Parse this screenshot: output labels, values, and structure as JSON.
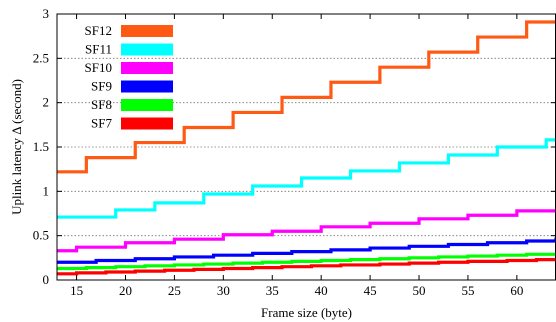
{
  "chart_data": {
    "type": "line",
    "xlabel": "Frame size (byte)",
    "ylabel": "Uplink latency Δ (second)",
    "xlim": [
      13,
      64
    ],
    "ylim": [
      0,
      3
    ],
    "xticks": [
      15,
      20,
      25,
      30,
      35,
      40,
      45,
      50,
      55,
      60
    ],
    "yticks": [
      0,
      0.5,
      1,
      1.5,
      2,
      2.5,
      3
    ],
    "ytick_labels": [
      "0",
      "0.5",
      "1",
      "1.5",
      "2",
      "2.5",
      "3"
    ],
    "grid": "horizontal-dotted",
    "legend_position": "top-left",
    "series": [
      {
        "name": "SF12",
        "color": "#ff5a14",
        "x": [
          13,
          14,
          15,
          16,
          17,
          18,
          19,
          20,
          21,
          22,
          23,
          24,
          25,
          26,
          27,
          28,
          29,
          30,
          31,
          32,
          33,
          34,
          35,
          36,
          37,
          38,
          39,
          40,
          41,
          42,
          43,
          44,
          45,
          46,
          47,
          48,
          49,
          50,
          51,
          52,
          53,
          54,
          55,
          56,
          57,
          58,
          59,
          60,
          61,
          62,
          63,
          64
        ],
        "values": [
          1.22,
          1.22,
          1.22,
          1.38,
          1.38,
          1.38,
          1.38,
          1.38,
          1.55,
          1.55,
          1.55,
          1.55,
          1.55,
          1.72,
          1.72,
          1.72,
          1.72,
          1.72,
          1.89,
          1.89,
          1.89,
          1.89,
          1.89,
          2.06,
          2.06,
          2.06,
          2.06,
          2.06,
          2.23,
          2.23,
          2.23,
          2.23,
          2.23,
          2.4,
          2.4,
          2.4,
          2.4,
          2.4,
          2.57,
          2.57,
          2.57,
          2.57,
          2.57,
          2.74,
          2.74,
          2.74,
          2.74,
          2.74,
          2.91,
          2.91,
          2.91,
          2.91
        ]
      },
      {
        "name": "SF11",
        "color": "#00ffff",
        "x": [
          13,
          14,
          15,
          16,
          17,
          18,
          19,
          20,
          21,
          22,
          23,
          24,
          25,
          26,
          27,
          28,
          29,
          30,
          31,
          32,
          33,
          34,
          35,
          36,
          37,
          38,
          39,
          40,
          41,
          42,
          43,
          44,
          45,
          46,
          47,
          48,
          49,
          50,
          51,
          52,
          53,
          54,
          55,
          56,
          57,
          58,
          59,
          60,
          61,
          62,
          63,
          64
        ],
        "values": [
          0.71,
          0.71,
          0.71,
          0.71,
          0.71,
          0.71,
          0.79,
          0.79,
          0.79,
          0.79,
          0.87,
          0.87,
          0.87,
          0.87,
          0.87,
          0.97,
          0.97,
          0.97,
          0.97,
          0.97,
          1.06,
          1.06,
          1.06,
          1.06,
          1.06,
          1.15,
          1.15,
          1.15,
          1.15,
          1.15,
          1.23,
          1.23,
          1.23,
          1.23,
          1.23,
          1.32,
          1.32,
          1.32,
          1.32,
          1.32,
          1.41,
          1.41,
          1.41,
          1.41,
          1.41,
          1.5,
          1.5,
          1.5,
          1.5,
          1.5,
          1.58,
          1.58
        ]
      },
      {
        "name": "SF10",
        "color": "#ff00ff",
        "x": [
          13,
          14,
          15,
          16,
          17,
          18,
          19,
          20,
          21,
          22,
          23,
          24,
          25,
          26,
          27,
          28,
          29,
          30,
          31,
          32,
          33,
          34,
          35,
          36,
          37,
          38,
          39,
          40,
          41,
          42,
          43,
          44,
          45,
          46,
          47,
          48,
          49,
          50,
          51,
          52,
          53,
          54,
          55,
          56,
          57,
          58,
          59,
          60,
          61,
          62,
          63,
          64
        ],
        "values": [
          0.33,
          0.33,
          0.37,
          0.37,
          0.37,
          0.37,
          0.37,
          0.42,
          0.42,
          0.42,
          0.42,
          0.42,
          0.46,
          0.46,
          0.46,
          0.46,
          0.46,
          0.51,
          0.51,
          0.51,
          0.51,
          0.51,
          0.55,
          0.55,
          0.55,
          0.55,
          0.55,
          0.6,
          0.6,
          0.6,
          0.6,
          0.6,
          0.64,
          0.64,
          0.64,
          0.64,
          0.64,
          0.69,
          0.69,
          0.69,
          0.69,
          0.69,
          0.73,
          0.73,
          0.73,
          0.73,
          0.73,
          0.78,
          0.78,
          0.78,
          0.78,
          0.8
        ]
      },
      {
        "name": "SF9",
        "color": "#0000ff",
        "x": [
          13,
          14,
          15,
          16,
          17,
          18,
          19,
          20,
          21,
          22,
          23,
          24,
          25,
          26,
          27,
          28,
          29,
          30,
          31,
          32,
          33,
          34,
          35,
          36,
          37,
          38,
          39,
          40,
          41,
          42,
          43,
          44,
          45,
          46,
          47,
          48,
          49,
          50,
          51,
          52,
          53,
          54,
          55,
          56,
          57,
          58,
          59,
          60,
          61,
          62,
          63,
          64
        ],
        "values": [
          0.2,
          0.2,
          0.2,
          0.2,
          0.22,
          0.22,
          0.22,
          0.22,
          0.24,
          0.24,
          0.24,
          0.24,
          0.26,
          0.26,
          0.26,
          0.26,
          0.28,
          0.28,
          0.28,
          0.28,
          0.3,
          0.3,
          0.3,
          0.3,
          0.32,
          0.32,
          0.32,
          0.32,
          0.34,
          0.34,
          0.34,
          0.34,
          0.36,
          0.36,
          0.36,
          0.36,
          0.38,
          0.38,
          0.38,
          0.38,
          0.4,
          0.4,
          0.4,
          0.4,
          0.42,
          0.42,
          0.42,
          0.42,
          0.44,
          0.44,
          0.44,
          0.48
        ]
      },
      {
        "name": "SF8",
        "color": "#00ff00",
        "x": [
          13,
          14,
          15,
          16,
          17,
          18,
          19,
          20,
          21,
          22,
          23,
          24,
          25,
          26,
          27,
          28,
          29,
          30,
          31,
          32,
          33,
          34,
          35,
          36,
          37,
          38,
          39,
          40,
          41,
          42,
          43,
          44,
          45,
          46,
          47,
          48,
          49,
          50,
          51,
          52,
          53,
          54,
          55,
          56,
          57,
          58,
          59,
          60,
          61,
          62,
          63,
          64
        ],
        "values": [
          0.13,
          0.13,
          0.13,
          0.14,
          0.14,
          0.14,
          0.15,
          0.15,
          0.15,
          0.16,
          0.16,
          0.16,
          0.17,
          0.17,
          0.17,
          0.18,
          0.18,
          0.18,
          0.19,
          0.19,
          0.19,
          0.2,
          0.2,
          0.2,
          0.21,
          0.21,
          0.21,
          0.22,
          0.22,
          0.22,
          0.23,
          0.23,
          0.23,
          0.24,
          0.24,
          0.24,
          0.25,
          0.25,
          0.25,
          0.26,
          0.26,
          0.26,
          0.27,
          0.27,
          0.27,
          0.28,
          0.28,
          0.28,
          0.29,
          0.29,
          0.29,
          0.3
        ]
      },
      {
        "name": "SF7",
        "color": "#ff0000",
        "x": [
          13,
          14,
          15,
          16,
          17,
          18,
          19,
          20,
          21,
          22,
          23,
          24,
          25,
          26,
          27,
          28,
          29,
          30,
          31,
          32,
          33,
          34,
          35,
          36,
          37,
          38,
          39,
          40,
          41,
          42,
          43,
          44,
          45,
          46,
          47,
          48,
          49,
          50,
          51,
          52,
          53,
          54,
          55,
          56,
          57,
          58,
          59,
          60,
          61,
          62,
          63,
          64
        ],
        "values": [
          0.07,
          0.07,
          0.08,
          0.08,
          0.08,
          0.09,
          0.09,
          0.09,
          0.1,
          0.1,
          0.1,
          0.11,
          0.11,
          0.11,
          0.12,
          0.12,
          0.12,
          0.13,
          0.13,
          0.13,
          0.14,
          0.14,
          0.14,
          0.15,
          0.15,
          0.15,
          0.16,
          0.16,
          0.16,
          0.17,
          0.17,
          0.17,
          0.17,
          0.18,
          0.18,
          0.18,
          0.19,
          0.19,
          0.19,
          0.2,
          0.2,
          0.2,
          0.21,
          0.21,
          0.21,
          0.21,
          0.22,
          0.22,
          0.22,
          0.23,
          0.23,
          0.23
        ]
      }
    ]
  }
}
